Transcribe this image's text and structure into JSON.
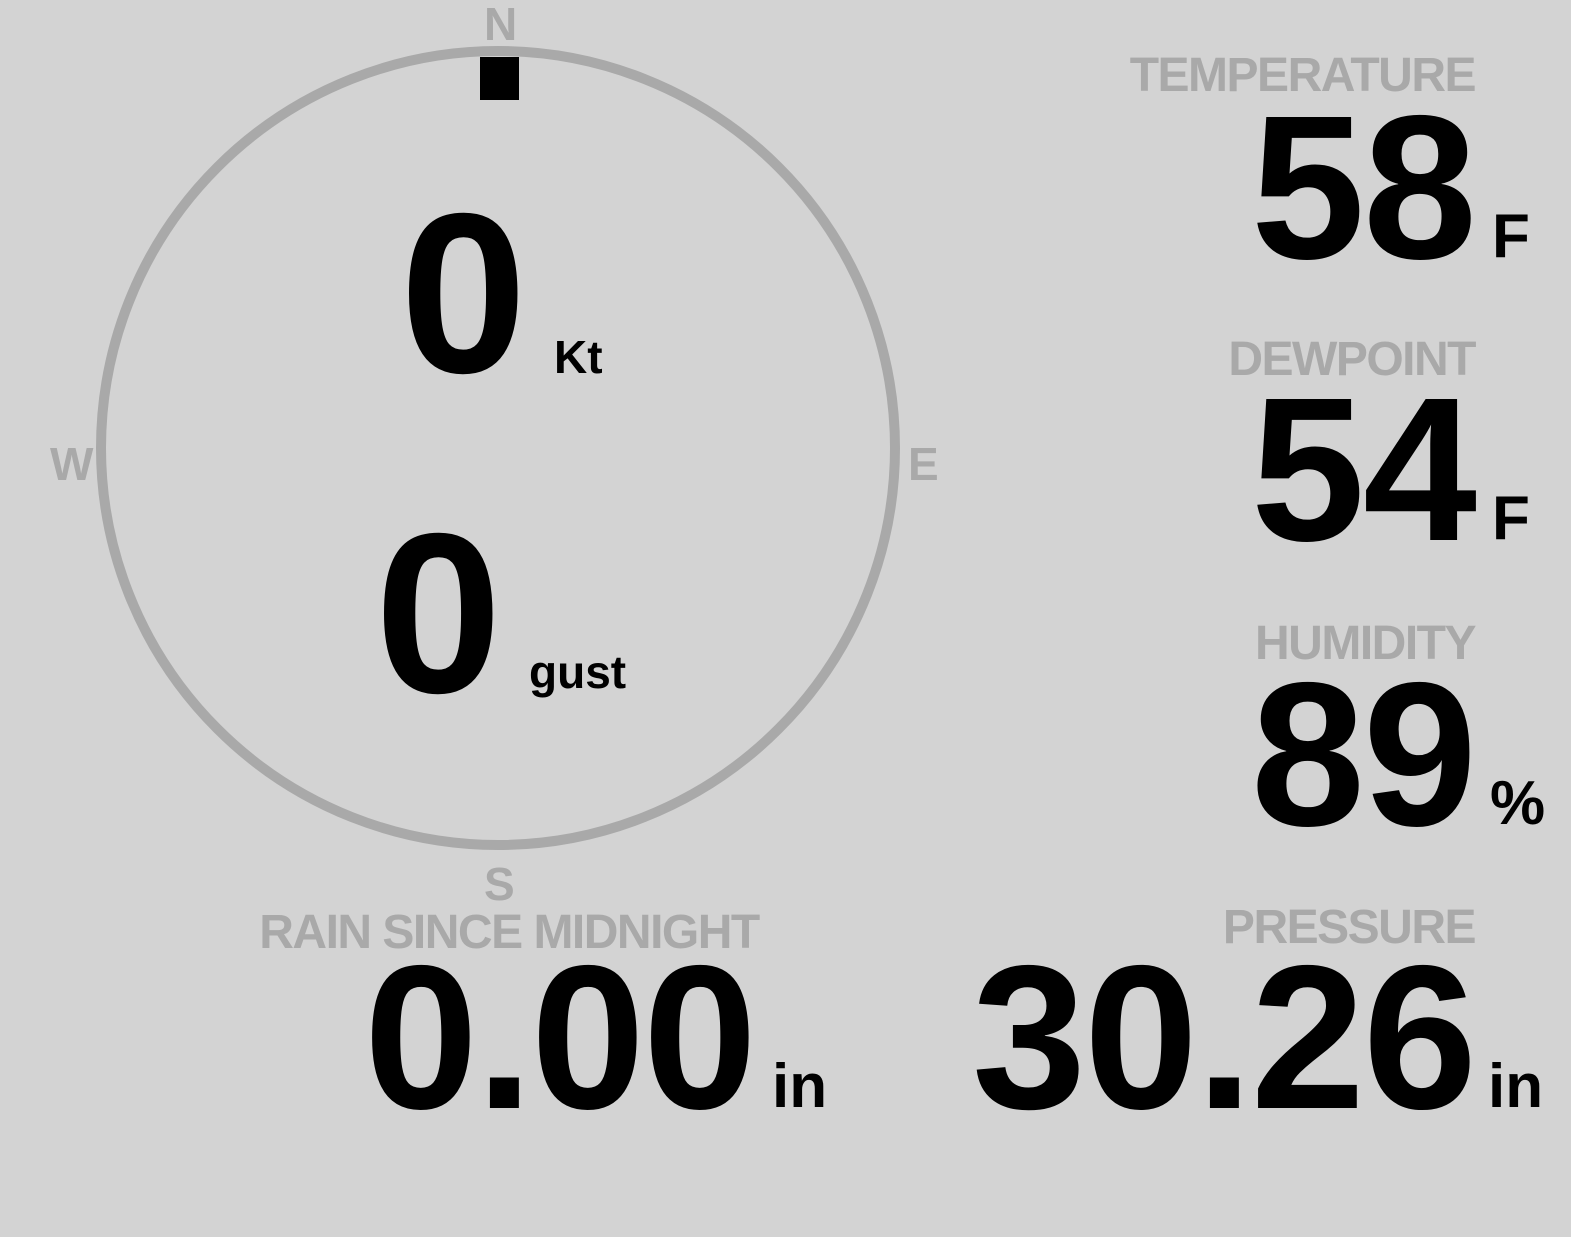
{
  "colors": {
    "background": "#d3d3d3",
    "label": "#a9a9a9",
    "value": "#000000",
    "compass_ring": "#a9a9a9"
  },
  "wind": {
    "direction_deg": 0,
    "compass": {
      "north": "N",
      "east": "E",
      "south": "S",
      "west": "W"
    },
    "speed": "0",
    "speed_unit": "Kt",
    "gust": "0",
    "gust_unit": "gust"
  },
  "temperature": {
    "label": "TEMPERATURE",
    "value": "58",
    "unit": "F"
  },
  "dewpoint": {
    "label": "DEWPOINT",
    "value": "54",
    "unit": "F"
  },
  "humidity": {
    "label": "HUMIDITY",
    "value": "89",
    "unit": "%"
  },
  "pressure": {
    "label": "PRESSURE",
    "value": "30.26",
    "unit": "in"
  },
  "rain": {
    "label": "RAIN SINCE MIDNIGHT",
    "value": "0.00",
    "unit": "in"
  }
}
